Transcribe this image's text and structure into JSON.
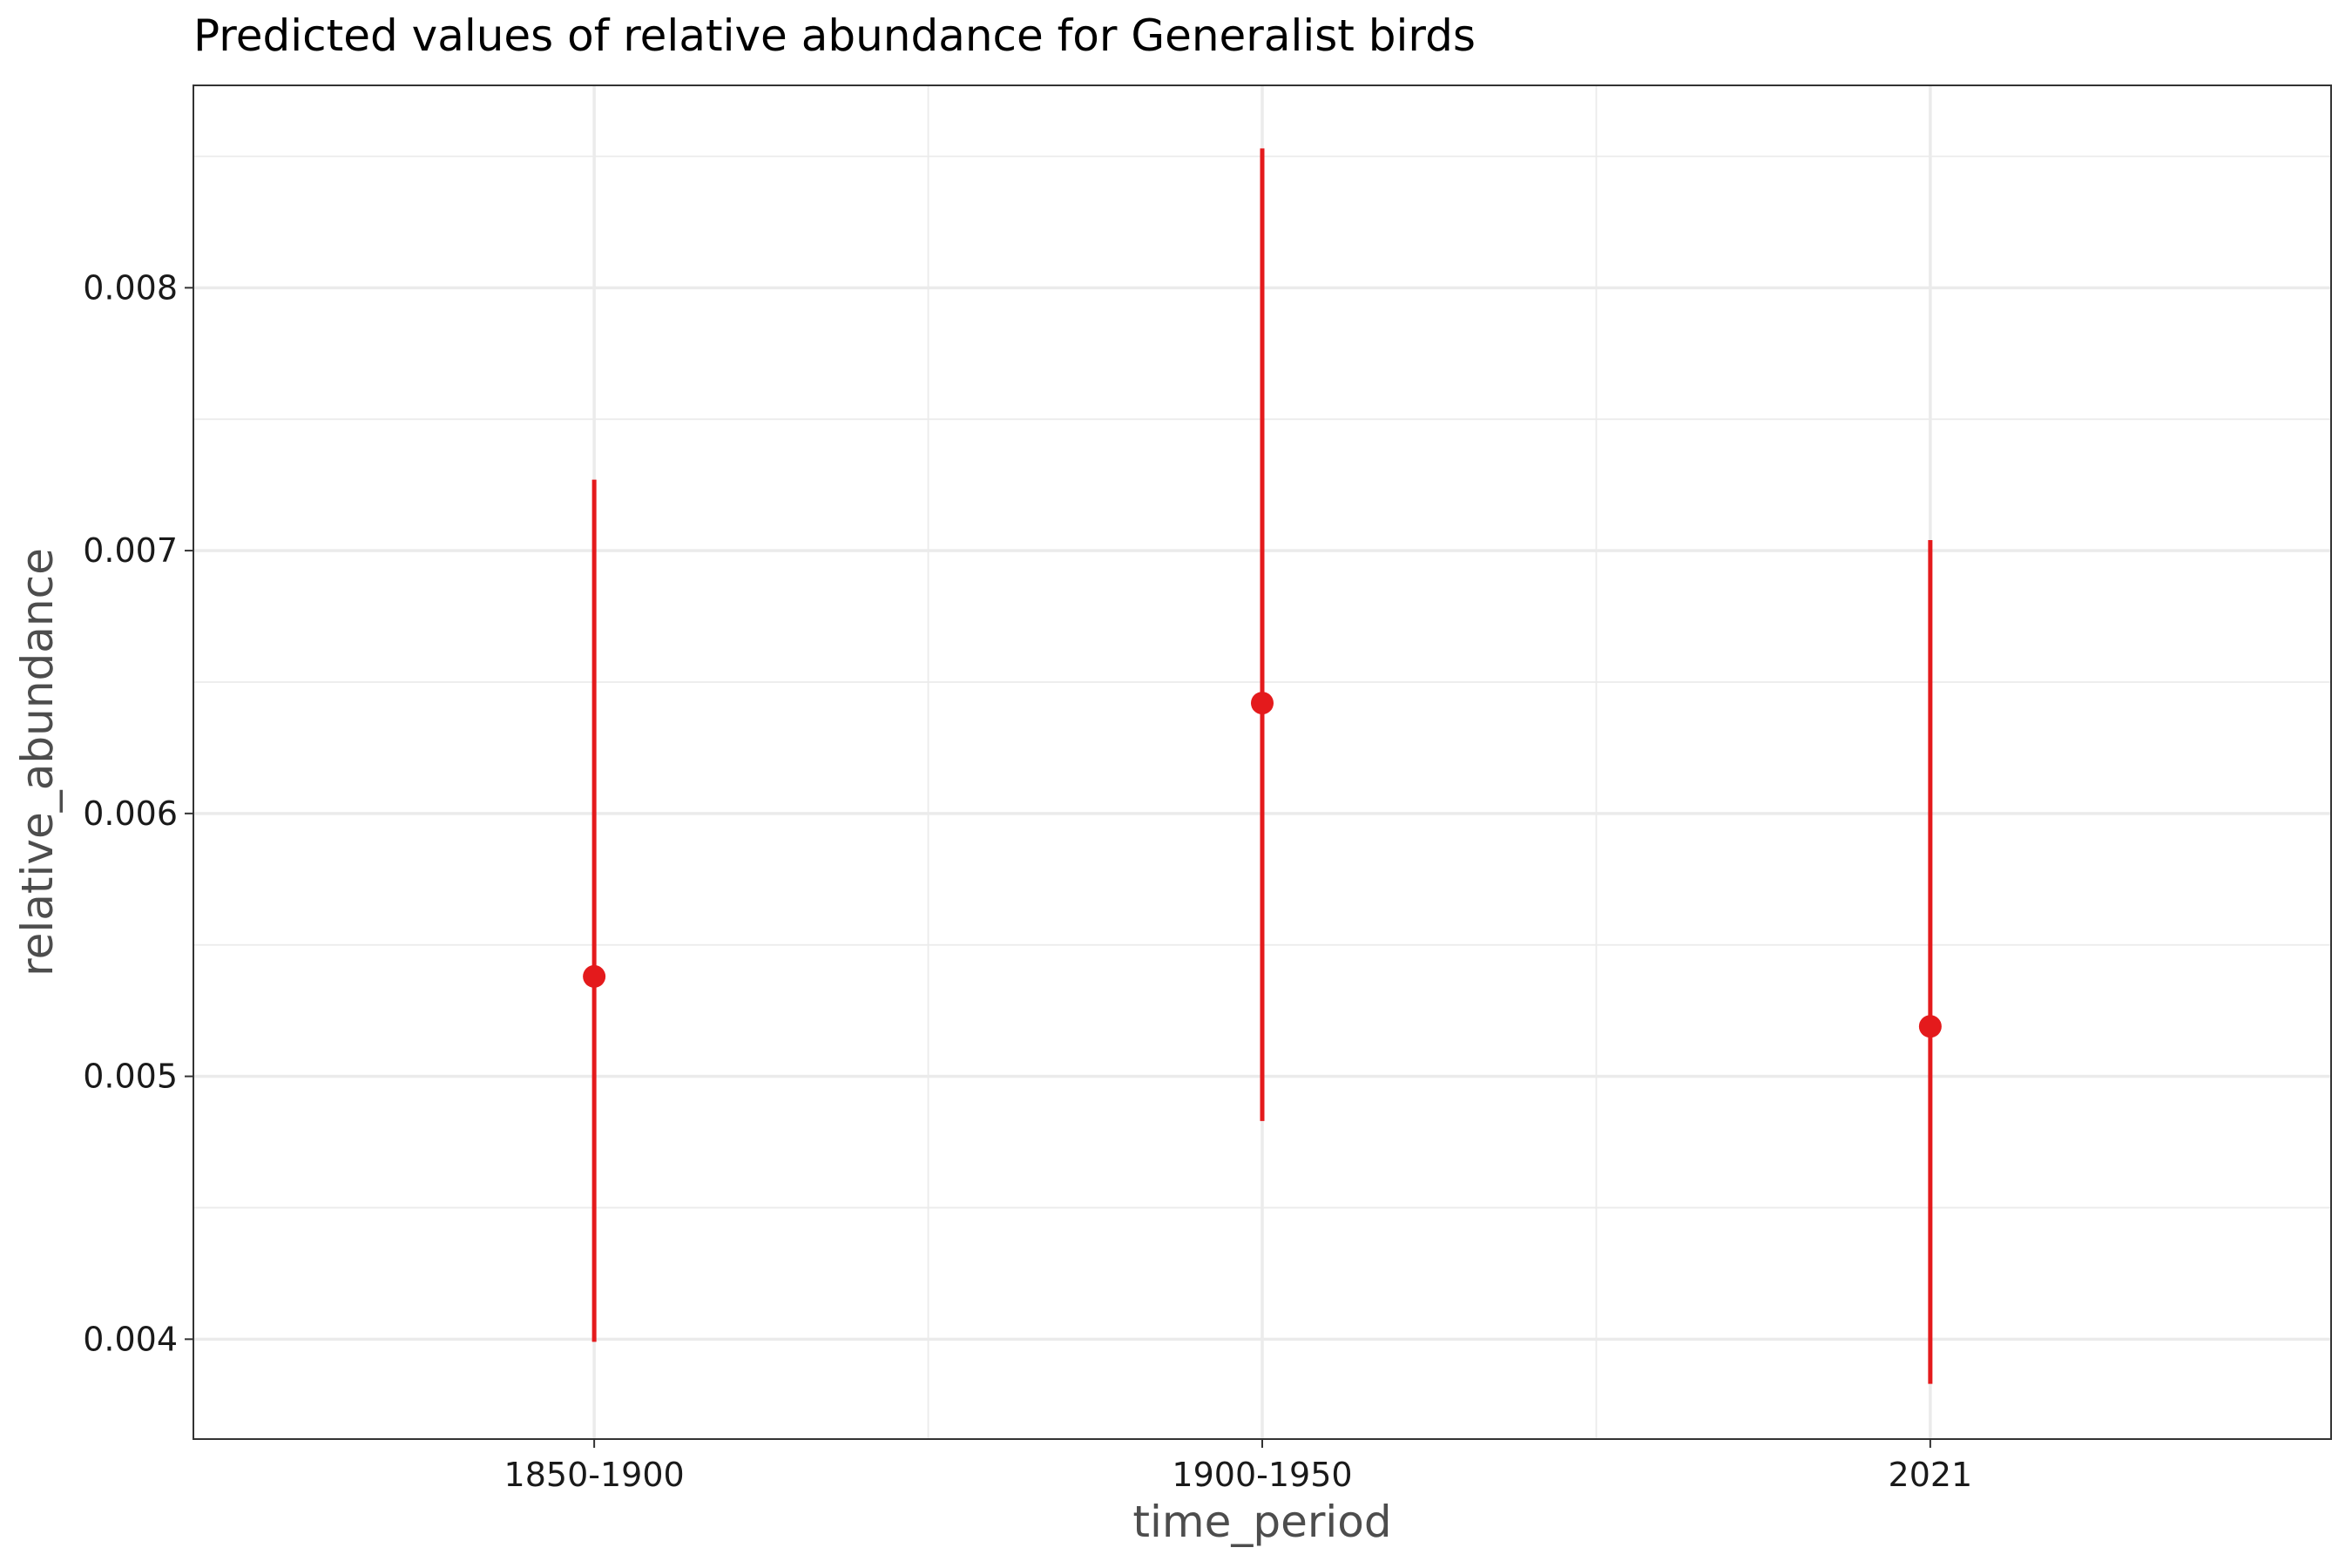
{
  "chart_data": {
    "type": "scatter",
    "title": "Predicted values of relative abundance for Generalist birds",
    "xlabel": "time_period",
    "ylabel": "relative_abundance",
    "categories": [
      "1850-1900",
      "1900-1950",
      "2021"
    ],
    "series": [
      {
        "color": "#e41a1c",
        "values": [
          0.00538,
          0.00642,
          0.00519
        ],
        "lower": [
          0.00399,
          0.00483,
          0.00383
        ],
        "upper": [
          0.00727,
          0.00853,
          0.00704
        ]
      }
    ],
    "ylim": [
      0.00362,
      0.00877
    ],
    "yticks": [
      0.004,
      0.005,
      0.006,
      0.007,
      0.008
    ],
    "ytick_labels": [
      "0.004",
      "0.005",
      "0.006",
      "0.007",
      "0.008"
    ],
    "grid": true,
    "legend": "none"
  }
}
